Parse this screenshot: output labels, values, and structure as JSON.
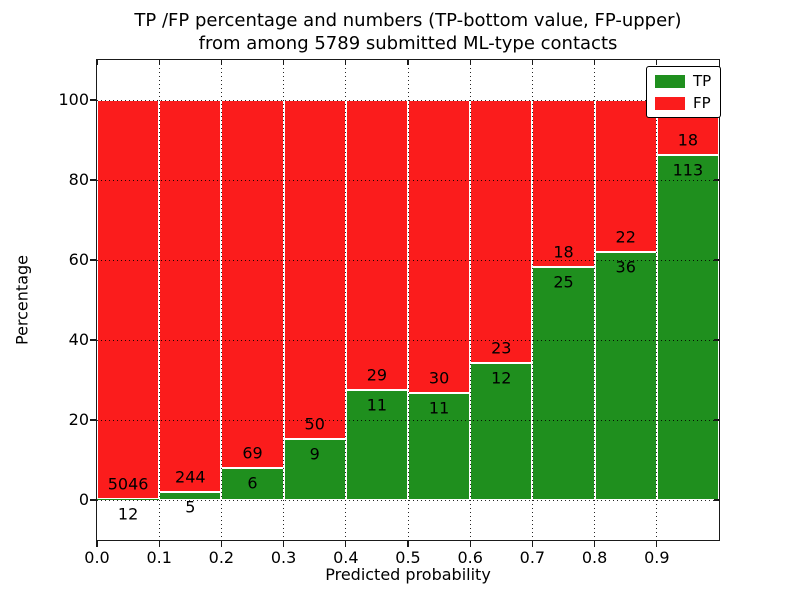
{
  "figure": {
    "title_line1": "TP /FP percentage and numbers (TP-bottom value, FP-upper)",
    "title_line2": "from among 5789 submitted ML-type contacts"
  },
  "chart_data": {
    "type": "bar",
    "subtype": "stacked-100-percent",
    "title": "TP /FP percentage and numbers (TP-bottom value, FP-upper) from among 5789 submitted ML-type contacts",
    "xlabel": "Predicted probability",
    "ylabel": "Percentage",
    "categories": [
      "0.0",
      "0.1",
      "0.2",
      "0.3",
      "0.4",
      "0.5",
      "0.6",
      "0.7",
      "0.8",
      "0.9"
    ],
    "bin_width": 0.1,
    "series": [
      {
        "name": "TP",
        "color": "#1f8f1e",
        "values": [
          12,
          5,
          6,
          9,
          11,
          11,
          12,
          25,
          36,
          113
        ]
      },
      {
        "name": "FP",
        "color": "#fb1c1c",
        "values": [
          5046,
          244,
          69,
          50,
          29,
          30,
          23,
          18,
          22,
          18
        ]
      }
    ],
    "tp_percent_per_bin": [
      0.24,
      2.01,
      8.0,
      15.25,
      27.5,
      26.83,
      34.29,
      58.14,
      62.07,
      86.26
    ],
    "total_contacts": 5789,
    "ylim": [
      -10,
      110
    ],
    "xlim": [
      0,
      1
    ],
    "yticks": [
      0,
      20,
      40,
      60,
      80,
      100
    ],
    "grid": "dotted",
    "legend": {
      "position": "upper-right",
      "entries": [
        {
          "label": "TP",
          "color": "#1f8f1e"
        },
        {
          "label": "FP",
          "color": "#fb1c1c"
        }
      ]
    }
  }
}
